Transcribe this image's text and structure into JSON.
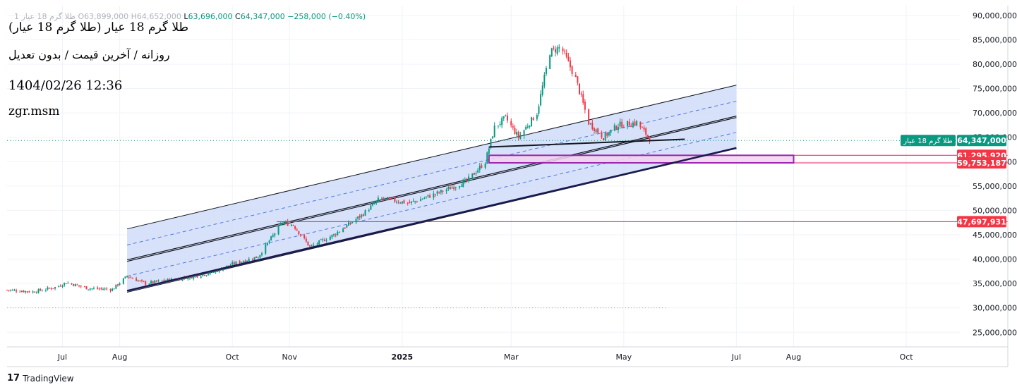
{
  "header": {
    "symbol_dim": "طلا گرم 18 عیار 1",
    "open_label": "O",
    "open": "63,899,000",
    "high_label": "H",
    "high": "64,652,000",
    "low_label": "L",
    "low": "63,696,000",
    "close_label": "C",
    "close": "64,347,000",
    "change": "−258,000 (−0.40%)"
  },
  "overlay": {
    "title": "طلا گرم 18 عیار (طلا گرم 18 عیار)",
    "subtitle": "روزانه / آخرین قیمت / بدون تعدیل",
    "datetime": "1404/02/26 12:36",
    "author": "zgr.msm"
  },
  "branding": {
    "name": "TradingView"
  },
  "colors": {
    "up": "#089981",
    "down": "#f23645",
    "channel_fill": "#cdd9f8",
    "channel_dash": "#4f7be0",
    "zone_border": "#9c27b0",
    "level_line": "#e91e63",
    "grid": "#f0f3fa"
  },
  "chart_data": {
    "type": "candlestick",
    "y_axis": {
      "min": 22000000,
      "max": 92000000,
      "ticks": [
        25000000,
        30000000,
        35000000,
        40000000,
        45000000,
        50000000,
        55000000,
        60000000,
        65000000,
        70000000,
        75000000,
        80000000,
        85000000,
        90000000
      ],
      "tick_labels": [
        "25,000,000",
        "30,000,000",
        "35,000,000",
        "40,000,000",
        "45,000,000",
        "50,000,000",
        "55,000,000",
        "60,000,000",
        "65,000,000",
        "70,000,000",
        "75,000,000",
        "80,000,000",
        "85,000,000",
        "90,000,000"
      ]
    },
    "x_axis": {
      "start": "2024-06-01",
      "end": "2025-11-25",
      "ticks": [
        {
          "date": "2024-07-01",
          "label": "Jul",
          "bold": false
        },
        {
          "date": "2024-08-01",
          "label": "Aug",
          "bold": false
        },
        {
          "date": "2024-10-01",
          "label": "Oct",
          "bold": false
        },
        {
          "date": "2024-11-01",
          "label": "Nov",
          "bold": false
        },
        {
          "date": "2025-01-01",
          "label": "2025",
          "bold": true
        },
        {
          "date": "2025-03-01",
          "label": "Mar",
          "bold": false
        },
        {
          "date": "2025-05-01",
          "label": "May",
          "bold": false
        },
        {
          "date": "2025-07-01",
          "label": "Jul",
          "bold": false
        },
        {
          "date": "2025-08-01",
          "label": "Aug",
          "bold": false
        },
        {
          "date": "2025-10-01",
          "label": "Oct",
          "bold": false
        }
      ]
    },
    "price_path": [
      {
        "date": "2024-06-01",
        "price": 33700000
      },
      {
        "date": "2024-06-15",
        "price": 33300000
      },
      {
        "date": "2024-06-28",
        "price": 34300000
      },
      {
        "date": "2024-07-03",
        "price": 35200000
      },
      {
        "date": "2024-07-15",
        "price": 34000000
      },
      {
        "date": "2024-07-28",
        "price": 33800000
      },
      {
        "date": "2024-08-05",
        "price": 36500000
      },
      {
        "date": "2024-08-15",
        "price": 35000000
      },
      {
        "date": "2024-08-25",
        "price": 35600000
      },
      {
        "date": "2024-09-08",
        "price": 36300000
      },
      {
        "date": "2024-09-20",
        "price": 37200000
      },
      {
        "date": "2024-10-01",
        "price": 39000000
      },
      {
        "date": "2024-10-15",
        "price": 40500000
      },
      {
        "date": "2024-10-28",
        "price": 47500000
      },
      {
        "date": "2024-11-03",
        "price": 47000000
      },
      {
        "date": "2024-11-12",
        "price": 42500000
      },
      {
        "date": "2024-11-25",
        "price": 45000000
      },
      {
        "date": "2024-12-10",
        "price": 49000000
      },
      {
        "date": "2024-12-20",
        "price": 52500000
      },
      {
        "date": "2025-01-05",
        "price": 51500000
      },
      {
        "date": "2025-01-20",
        "price": 53500000
      },
      {
        "date": "2025-02-05",
        "price": 56000000
      },
      {
        "date": "2025-02-15",
        "price": 60000000
      },
      {
        "date": "2025-02-20",
        "price": 67000000
      },
      {
        "date": "2025-02-26",
        "price": 69000000
      },
      {
        "date": "2025-03-05",
        "price": 65000000
      },
      {
        "date": "2025-03-15",
        "price": 70000000
      },
      {
        "date": "2025-03-22",
        "price": 82500000
      },
      {
        "date": "2025-03-28",
        "price": 83500000
      },
      {
        "date": "2025-04-05",
        "price": 77000000
      },
      {
        "date": "2025-04-12",
        "price": 68000000
      },
      {
        "date": "2025-04-20",
        "price": 65000000
      },
      {
        "date": "2025-04-28",
        "price": 67500000
      },
      {
        "date": "2025-05-08",
        "price": 68000000
      },
      {
        "date": "2025-05-16",
        "price": 64347000
      }
    ],
    "current_price": {
      "value": 64347000,
      "label": "64,347,000",
      "tag": "طلا گرم 18 عیار"
    },
    "price_levels": [
      {
        "value": 61295920,
        "label": "61,295,920"
      },
      {
        "value": 59753187,
        "label": "59,753,187"
      },
      {
        "value": 47697931,
        "label": "47,697,931"
      }
    ],
    "regression_channel": {
      "start_date": "2024-08-05",
      "end_date": "2025-07-01",
      "center_start": 39700000,
      "center_end": 69200000,
      "outer_offset": 6500000,
      "inner_offset": 3200000
    },
    "support_trendline": {
      "start_date": "2024-08-05",
      "end_date": "2025-07-01",
      "start": 33500000,
      "end": 62800000
    },
    "neckline": {
      "start_date": "2025-02-17",
      "end_date": "2025-06-03",
      "start": 63000000,
      "end": 64600000
    },
    "zone": {
      "start_date": "2025-02-17",
      "end_date": "2025-08-01",
      "top": 61295920,
      "bottom": 59753187
    },
    "level_line_start_date": "2024-10-25",
    "dotted_lines": [
      {
        "value": 30000000,
        "end_date": "2025-05-24"
      }
    ]
  }
}
